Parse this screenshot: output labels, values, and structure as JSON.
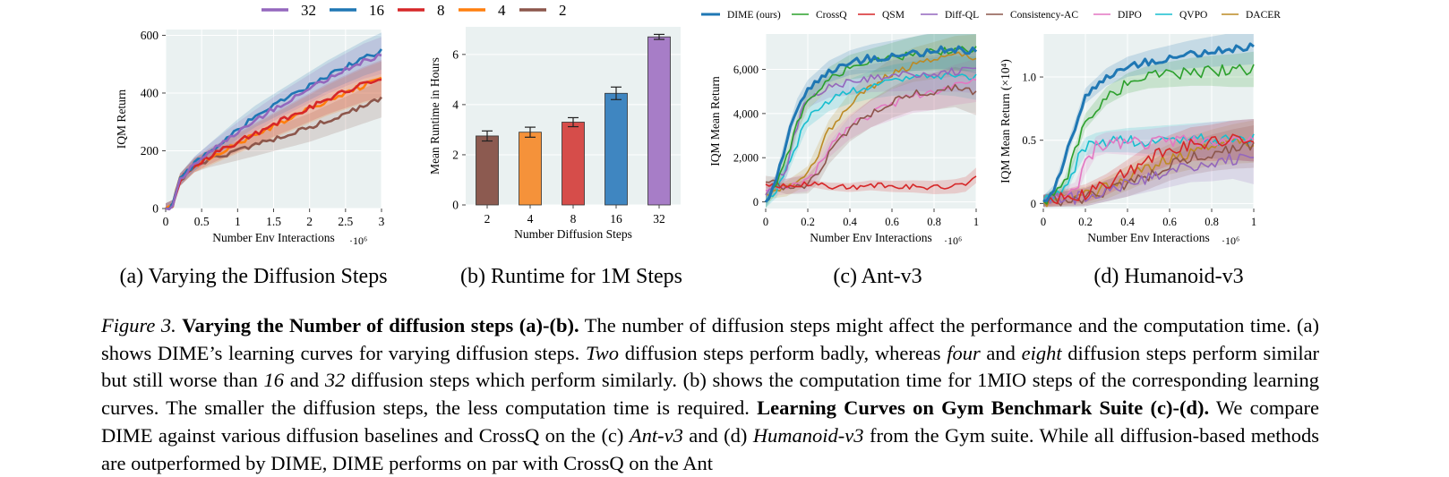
{
  "colors": {
    "steps": {
      "32": "#9467bd",
      "16": "#1f77b4",
      "8": "#d62728",
      "4": "#ff7f0e",
      "2": "#8c564b"
    },
    "methods": [
      "#1f77b4",
      "#2ca02c",
      "#d62728",
      "#9467bd",
      "#8c564b",
      "#e377c2",
      "#17becf",
      "#bc8a24"
    ],
    "bars": [
      "#8c5a50",
      "#f5923a",
      "#d64d4a",
      "#3f86c1",
      "#a77dc7"
    ],
    "panel_bg": "#eaf1f1"
  },
  "legend_steps": [
    "32",
    "16",
    "8",
    "4",
    "2"
  ],
  "legend_methods": [
    "DIME (ours)",
    "CrossQ",
    "QSM",
    "Diff-QL",
    "Consistency-AC",
    "DIPO",
    "QVPO",
    "DACER"
  ],
  "chart_data": [
    {
      "type": "line",
      "panel": "a",
      "subcaption": "(a) Varying the Diffusion Steps",
      "xlabel": "Number Env Interactions",
      "xscale_label": "·10⁶",
      "ylabel": "IQM Return",
      "xlim": [
        0,
        3
      ],
      "ylim": [
        0,
        620
      ],
      "xticks": [
        0,
        0.5,
        1,
        1.5,
        2,
        2.5,
        3
      ],
      "xtick_labels": [
        "0",
        "0.5",
        "1",
        "1.5",
        "2",
        "2.5",
        "3"
      ],
      "yticks": [
        0,
        200,
        400,
        600
      ],
      "ytick_labels": [
        "0",
        "200",
        "400",
        "600"
      ],
      "series": [
        {
          "name": "32",
          "x": [
            0,
            0.1,
            0.15,
            0.2,
            0.4,
            0.6,
            0.8,
            1.0,
            1.25,
            1.5,
            1.75,
            2.0,
            2.25,
            2.5,
            2.75,
            3.0
          ],
          "y": [
            0,
            10,
            60,
            100,
            155,
            195,
            230,
            265,
            305,
            345,
            380,
            415,
            450,
            480,
            510,
            530
          ]
        },
        {
          "name": "16",
          "x": [
            0,
            0.1,
            0.15,
            0.2,
            0.4,
            0.6,
            0.8,
            1.0,
            1.25,
            1.5,
            1.75,
            2.0,
            2.25,
            2.5,
            2.75,
            3.0
          ],
          "y": [
            0,
            10,
            60,
            100,
            155,
            195,
            235,
            275,
            320,
            355,
            390,
            425,
            460,
            490,
            520,
            545
          ]
        },
        {
          "name": "8",
          "x": [
            0,
            0.1,
            0.15,
            0.2,
            0.4,
            0.6,
            0.8,
            1.0,
            1.25,
            1.5,
            1.75,
            2.0,
            2.25,
            2.5,
            2.75,
            3.0
          ],
          "y": [
            0,
            10,
            60,
            100,
            150,
            180,
            205,
            230,
            260,
            290,
            320,
            350,
            380,
            405,
            430,
            450
          ]
        },
        {
          "name": "4",
          "x": [
            0,
            0.1,
            0.15,
            0.2,
            0.4,
            0.6,
            0.8,
            1.0,
            1.25,
            1.5,
            1.75,
            2.0,
            2.25,
            2.5,
            2.75,
            3.0
          ],
          "y": [
            0,
            10,
            60,
            100,
            150,
            175,
            200,
            225,
            255,
            285,
            315,
            345,
            375,
            400,
            425,
            445
          ]
        },
        {
          "name": "2",
          "x": [
            0,
            0.1,
            0.15,
            0.2,
            0.4,
            0.6,
            0.8,
            1.0,
            1.25,
            1.5,
            1.75,
            2.0,
            2.25,
            2.5,
            2.75,
            3.0
          ],
          "y": [
            0,
            10,
            60,
            100,
            150,
            170,
            185,
            200,
            220,
            240,
            260,
            280,
            305,
            330,
            355,
            380
          ]
        }
      ]
    },
    {
      "type": "bar",
      "panel": "b",
      "subcaption": "(b) Runtime for 1M Steps",
      "xlabel": "Number Diffusion Steps",
      "ylabel": "Mean Runtime in Hours",
      "categories": [
        "2",
        "4",
        "8",
        "16",
        "32"
      ],
      "values": [
        2.75,
        2.9,
        3.3,
        4.45,
        6.7
      ],
      "errors": [
        0.2,
        0.2,
        0.18,
        0.25,
        0.1
      ],
      "ylim": [
        0,
        7.1
      ],
      "yticks": [
        0,
        2,
        4,
        6
      ],
      "ytick_labels": [
        "0",
        "2",
        "4",
        "6"
      ]
    },
    {
      "type": "line",
      "panel": "c",
      "subcaption": "(c) Ant-v3",
      "xlabel": "Number Env Interactions",
      "xscale_label": "·10⁶",
      "ylabel": "IQM Mean Return",
      "xlim": [
        0,
        1
      ],
      "ylim": [
        -300,
        7600
      ],
      "xticks": [
        0,
        0.2,
        0.4,
        0.6,
        0.8,
        1
      ],
      "xtick_labels": [
        "0",
        "0.2",
        "0.4",
        "0.6",
        "0.8",
        "1"
      ],
      "yticks": [
        0,
        2000,
        4000,
        6000
      ],
      "ytick_labels": [
        "0",
        "2,000",
        "4,000",
        "6,000"
      ],
      "series": [
        {
          "name": "DIME (ours)",
          "x": [
            0,
            0.05,
            0.1,
            0.15,
            0.2,
            0.3,
            0.4,
            0.5,
            0.6,
            0.7,
            0.8,
            0.9,
            1.0
          ],
          "y": [
            0,
            1000,
            2800,
            4300,
            5100,
            5900,
            6300,
            6500,
            6600,
            6700,
            6850,
            6900,
            6800
          ]
        },
        {
          "name": "CrossQ",
          "x": [
            0,
            0.05,
            0.1,
            0.15,
            0.2,
            0.3,
            0.4,
            0.5,
            0.6,
            0.7,
            0.8,
            0.9,
            1.0
          ],
          "y": [
            0,
            700,
            2000,
            3500,
            4600,
            5600,
            6100,
            6300,
            6500,
            6700,
            6800,
            6850,
            6900
          ]
        },
        {
          "name": "QSM",
          "x": [
            0,
            0.1,
            0.2,
            0.3,
            0.4,
            0.5,
            0.6,
            0.7,
            0.8,
            0.9,
            0.95,
            1.0
          ],
          "y": [
            800,
            700,
            850,
            700,
            650,
            750,
            700,
            700,
            650,
            700,
            800,
            1200
          ]
        },
        {
          "name": "Diff-QL",
          "x": [
            0,
            0.1,
            0.15,
            0.2,
            0.3,
            0.4,
            0.5,
            0.6,
            0.7,
            0.8,
            0.9,
            1.0
          ],
          "y": [
            300,
            1500,
            3500,
            4700,
            5200,
            5400,
            5600,
            5700,
            5800,
            5800,
            5900,
            5900
          ]
        },
        {
          "name": "Consistency-AC",
          "x": [
            0,
            0.1,
            0.2,
            0.25,
            0.3,
            0.4,
            0.5,
            0.6,
            0.7,
            0.8,
            0.9,
            1.0
          ],
          "y": [
            900,
            700,
            800,
            1300,
            2200,
            3300,
            4000,
            4500,
            4900,
            5000,
            5200,
            4900
          ]
        },
        {
          "name": "DIPO",
          "x": [
            0,
            0.1,
            0.2,
            0.25,
            0.3,
            0.4,
            0.5,
            0.6,
            0.7,
            0.8,
            0.9,
            1.0
          ],
          "y": [
            500,
            700,
            900,
            1600,
            2500,
            3400,
            4000,
            4400,
            4800,
            5000,
            5300,
            5500
          ]
        },
        {
          "name": "QVPO",
          "x": [
            0,
            0.05,
            0.1,
            0.15,
            0.2,
            0.3,
            0.4,
            0.5,
            0.6,
            0.7,
            0.8,
            0.9,
            1.0
          ],
          "y": [
            0,
            500,
            1500,
            2700,
            3800,
            4600,
            5000,
            5300,
            5500,
            5600,
            5700,
            5700,
            5600
          ]
        },
        {
          "name": "DACER",
          "x": [
            0,
            0.1,
            0.2,
            0.25,
            0.3,
            0.4,
            0.5,
            0.6,
            0.7,
            0.8,
            0.9,
            1.0
          ],
          "y": [
            400,
            600,
            1200,
            2200,
            3200,
            4400,
            5200,
            5800,
            6200,
            6400,
            6600,
            6600
          ]
        }
      ]
    },
    {
      "type": "line",
      "panel": "d",
      "subcaption": "(d) Humanoid-v3",
      "xlabel": "Number Env Interactions",
      "xscale_label": "·10⁶",
      "ylabel": "IQM Mean Return (×10⁴)",
      "xlim": [
        0,
        1
      ],
      "ylim": [
        -0.04,
        1.34
      ],
      "xticks": [
        0,
        0.2,
        0.4,
        0.6,
        0.8,
        1
      ],
      "xtick_labels": [
        "0",
        "0.2",
        "0.4",
        "0.6",
        "0.8",
        "1"
      ],
      "yticks": [
        0,
        0.5,
        1.0
      ],
      "ytick_labels": [
        "0",
        "0.5",
        "1.0"
      ],
      "series": [
        {
          "name": "DIME (ours)",
          "x": [
            0,
            0.05,
            0.1,
            0.15,
            0.2,
            0.3,
            0.4,
            0.5,
            0.6,
            0.7,
            0.8,
            0.9,
            1.0
          ],
          "y": [
            0.02,
            0.1,
            0.35,
            0.6,
            0.85,
            1.0,
            1.08,
            1.12,
            1.15,
            1.18,
            1.2,
            1.22,
            1.24
          ]
        },
        {
          "name": "CrossQ",
          "x": [
            0,
            0.05,
            0.1,
            0.15,
            0.2,
            0.3,
            0.4,
            0.5,
            0.6,
            0.7,
            0.8,
            0.9,
            1.0
          ],
          "y": [
            0.02,
            0.05,
            0.15,
            0.4,
            0.65,
            0.85,
            0.95,
            1.0,
            1.02,
            1.04,
            1.05,
            1.05,
            1.06
          ]
        },
        {
          "name": "QSM",
          "x": [
            0,
            0.2,
            0.3,
            0.4,
            0.5,
            0.6,
            0.7,
            0.8,
            0.9,
            1.0
          ],
          "y": [
            0.02,
            0.08,
            0.15,
            0.25,
            0.35,
            0.42,
            0.47,
            0.48,
            0.5,
            0.5
          ]
        },
        {
          "name": "Diff-QL",
          "x": [
            0,
            0.2,
            0.3,
            0.4,
            0.5,
            0.6,
            0.7,
            0.8,
            0.9,
            1.0
          ],
          "y": [
            0.02,
            0.05,
            0.1,
            0.15,
            0.2,
            0.25,
            0.3,
            0.32,
            0.35,
            0.32
          ]
        },
        {
          "name": "Consistency-AC",
          "x": [
            0,
            0.2,
            0.3,
            0.4,
            0.5,
            0.6,
            0.7,
            0.8,
            0.9,
            1.0
          ],
          "y": [
            0.02,
            0.05,
            0.1,
            0.15,
            0.22,
            0.3,
            0.36,
            0.4,
            0.43,
            0.45
          ]
        },
        {
          "name": "DIPO",
          "x": [
            0,
            0.15,
            0.2,
            0.25,
            0.3,
            0.4,
            0.5,
            0.6,
            0.7,
            0.8,
            0.9,
            1.0
          ],
          "y": [
            0.02,
            0.1,
            0.3,
            0.45,
            0.48,
            0.48,
            0.48,
            0.49,
            0.49,
            0.5,
            0.5,
            0.5
          ]
        },
        {
          "name": "QVPO",
          "x": [
            0,
            0.1,
            0.15,
            0.2,
            0.25,
            0.3,
            0.4,
            0.5,
            0.6,
            0.7,
            0.8,
            0.9,
            1.0
          ],
          "y": [
            0.02,
            0.1,
            0.3,
            0.45,
            0.48,
            0.49,
            0.5,
            0.5,
            0.5,
            0.5,
            0.5,
            0.5,
            0.5
          ]
        },
        {
          "name": "DACER",
          "x": [
            0,
            0.2,
            0.3,
            0.4,
            0.5,
            0.6,
            0.7,
            0.8,
            0.9,
            1.0
          ],
          "y": [
            0.02,
            0.06,
            0.12,
            0.2,
            0.28,
            0.35,
            0.4,
            0.44,
            0.47,
            0.49
          ]
        }
      ]
    }
  ],
  "caption": {
    "figure_label": "Figure 3.",
    "title1": "Varying the Number of diffusion steps (a)-(b).",
    "text1": "The number of diffusion steps might affect the performance and the computation time. (a) shows DIME’s learning curves for varying diffusion steps.",
    "em_two": "Two",
    "text2": "diffusion steps perform badly, whereas",
    "em_four": "four",
    "text3": "and",
    "em_eight": "eight",
    "text4": "diffusion steps perform similar but still worse than",
    "em_16": "16",
    "text5": "and",
    "em_32": "32",
    "text6": "diffusion steps which perform similarly. (b) shows the computation time for 1MIO steps of the corresponding learning curves. The smaller the diffusion steps, the less computation time is required.",
    "title2": "Learning Curves on Gym Benchmark Suite (c)-(d).",
    "text7": "We compare DIME against various diffusion baselines and CrossQ on the (c)",
    "em_ant": "Ant-v3",
    "text8": "and (d)",
    "em_humanoid": "Humanoid-v3",
    "text9": "from the Gym suite. While all diffusion-based methods are outperformed by DIME, DIME performs on par with CrossQ on the Ant"
  }
}
